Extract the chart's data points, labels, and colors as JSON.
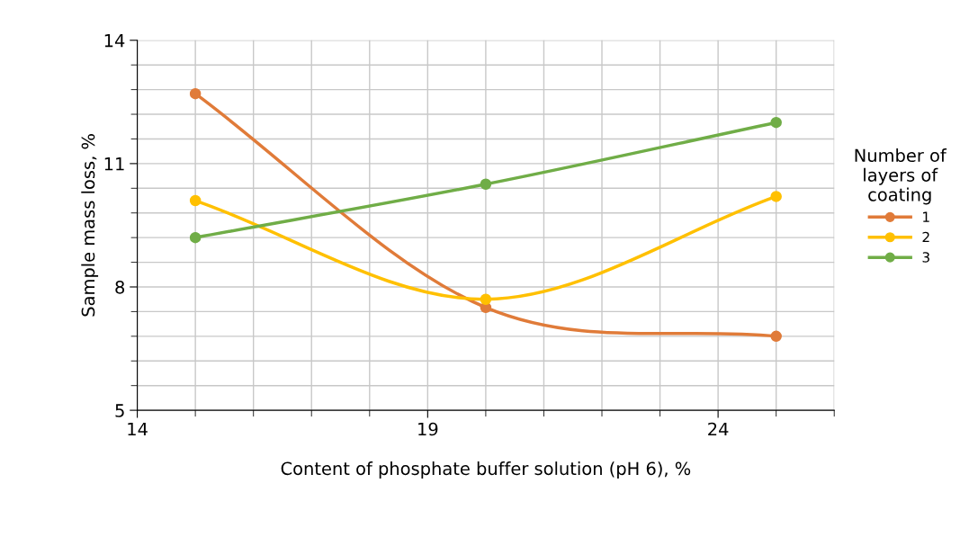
{
  "chart_data": {
    "type": "line",
    "xlabel": "Content of phosphate buffer solution (pH 6), %",
    "ylabel": "Sample mass loss, %",
    "legend_title": "Number of\nlayers of\ncoating",
    "x": [
      15,
      20,
      25
    ],
    "series": [
      {
        "name": "1",
        "color": "#e07b39",
        "values": [
          12.7,
          7.5,
          6.8
        ]
      },
      {
        "name": "2",
        "color": "#ffc000",
        "values": [
          10.1,
          7.7,
          10.2
        ]
      },
      {
        "name": "3",
        "color": "#70ad47",
        "values": [
          9.2,
          10.5,
          12.0
        ]
      }
    ],
    "xlim": [
      14,
      26
    ],
    "xticks": [
      14,
      19,
      24
    ],
    "ylim": [
      5,
      14
    ],
    "yticks": [
      5,
      8,
      11,
      14
    ],
    "grid": true,
    "legend": "right",
    "marker": "circle",
    "line_style": "solid"
  }
}
